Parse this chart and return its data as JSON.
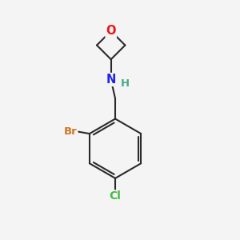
{
  "background_color": "#f4f4f4",
  "bond_color": "#2a2a2a",
  "bond_width": 1.5,
  "atoms": {
    "O": {
      "color": "#ee1111",
      "fontsize": 10.5,
      "fontweight": "bold"
    },
    "N": {
      "color": "#2222ee",
      "fontsize": 10.5,
      "fontweight": "bold"
    },
    "H": {
      "color": "#44aa88",
      "fontsize": 9.5,
      "fontweight": "bold"
    },
    "Br": {
      "color": "#cc7722",
      "fontsize": 9.5,
      "fontweight": "bold"
    },
    "Cl": {
      "color": "#44bb44",
      "fontsize": 10.0,
      "fontweight": "bold"
    }
  },
  "fig_width": 3.0,
  "fig_height": 3.0,
  "dpi": 100,
  "xlim": [
    0,
    10
  ],
  "ylim": [
    0,
    10
  ]
}
